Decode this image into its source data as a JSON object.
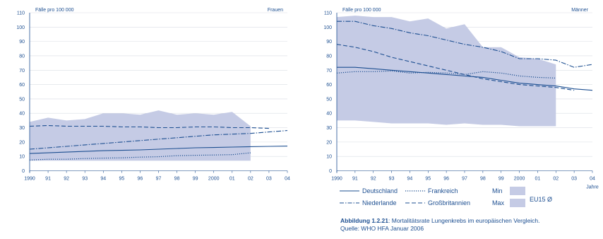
{
  "colors": {
    "band": "#c5cbe5",
    "line": "#1d4f91",
    "grid": "#d9dde3",
    "text": "#1d4f91"
  },
  "legend": {
    "deutschland": "Deutschland",
    "frankreich": "Frankreich",
    "niederlande": "Niederlande",
    "grossbritannien": "Großbritannien",
    "min": "Min",
    "max": "Max",
    "eu15": "EU15 Ø"
  },
  "caption": {
    "label": "Abbildung 1.2.21",
    "text": ": Mortalitätsrate Lungenkrebs im europäischen Vergleich.",
    "source": "Quelle: WHO HFA Januar 2006"
  },
  "chart_data": [
    {
      "type": "line",
      "panel": "Frauen",
      "ylabel": "Fälle pro 100 000",
      "xlabel": "",
      "ylim": [
        0,
        110
      ],
      "yticks": [
        "0",
        "10",
        "20",
        "30",
        "40",
        "50",
        "60",
        "70",
        "80",
        "90",
        "100",
        "110"
      ],
      "x": [
        "1990",
        "91",
        "92",
        "93",
        "94",
        "95",
        "96",
        "97",
        "98",
        "99",
        "2000",
        "01",
        "02",
        "03",
        "04"
      ],
      "band_min": [
        7,
        7,
        7,
        7,
        7,
        7,
        7,
        7,
        7,
        7,
        7,
        7,
        7
      ],
      "band_max": [
        34,
        37,
        35,
        36,
        40,
        40,
        39,
        42,
        39,
        40,
        39,
        41,
        31
      ],
      "series": [
        {
          "name": "Deutschland",
          "style": "solid",
          "values": [
            12,
            12.5,
            13,
            13.5,
            14,
            14.2,
            14.5,
            15,
            15.5,
            16,
            16.2,
            16.5,
            16.8,
            17,
            17.2
          ]
        },
        {
          "name": "Frankreich",
          "style": "dotted",
          "values": [
            7.5,
            8,
            8,
            8.5,
            8.8,
            9,
            9.5,
            9.8,
            10.5,
            10.8,
            11,
            11.2,
            12.5,
            null,
            null
          ]
        },
        {
          "name": "Niederlande",
          "style": "dashdot",
          "values": [
            15,
            16,
            17,
            18,
            19,
            20,
            21,
            22,
            23,
            24,
            25,
            25.5,
            26,
            27,
            28
          ]
        },
        {
          "name": "Großbritannien",
          "style": "dashed",
          "values": [
            31,
            31.5,
            31,
            31,
            31,
            30.5,
            30.5,
            30,
            30,
            30.5,
            30.5,
            30,
            30,
            29.5,
            null
          ]
        }
      ]
    },
    {
      "type": "line",
      "panel": "Männer",
      "ylabel": "Fälle pro 100 000",
      "xlabel": "Jahre",
      "ylim": [
        0,
        110
      ],
      "yticks": [
        "0",
        "10",
        "20",
        "30",
        "40",
        "50",
        "60",
        "70",
        "80",
        "90",
        "100",
        "110"
      ],
      "x": [
        "1990",
        "91",
        "92",
        "93",
        "94",
        "95",
        "96",
        "97",
        "98",
        "99",
        "2000",
        "01",
        "02",
        "03",
        "04"
      ],
      "band_min": [
        35,
        35,
        34,
        33,
        33,
        33,
        32,
        33,
        32,
        32,
        31,
        31,
        31
      ],
      "band_max": [
        107,
        108,
        107,
        107,
        104,
        106,
        99,
        102,
        86,
        86,
        79,
        78,
        74
      ],
      "series": [
        {
          "name": "Deutschland",
          "style": "solid",
          "values": [
            72,
            72,
            71,
            70,
            69,
            68,
            67,
            66,
            65,
            63,
            61,
            60,
            59,
            57,
            56
          ]
        },
        {
          "name": "Frankreich",
          "style": "dotted",
          "values": [
            68,
            69,
            69,
            69.5,
            68,
            68.5,
            68,
            67,
            69,
            68,
            66,
            65,
            64.5,
            null,
            null
          ]
        },
        {
          "name": "Niederlande",
          "style": "dashdot",
          "values": [
            104,
            104,
            101,
            99,
            96,
            94,
            91,
            88,
            86,
            83,
            78,
            78,
            77,
            72,
            74
          ]
        },
        {
          "name": "Großbritannien",
          "style": "dashed",
          "values": [
            88,
            86,
            83,
            79,
            76,
            73,
            70,
            67,
            64,
            62,
            60,
            59,
            58,
            56,
            null
          ]
        }
      ]
    }
  ]
}
